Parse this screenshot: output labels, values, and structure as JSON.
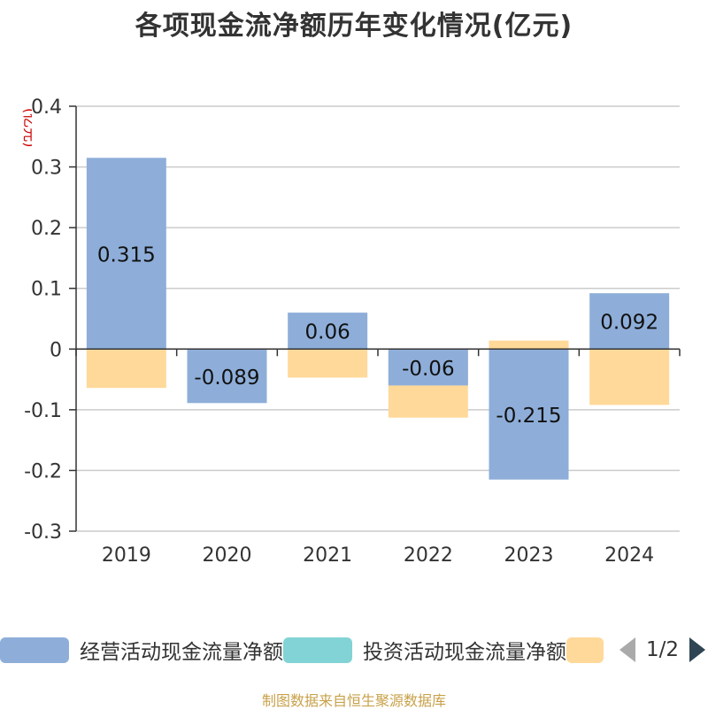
{
  "chart_data": {
    "type": "bar",
    "title": "各项现金流净额历年变化情况(亿元)",
    "unit_label": "(亿元)",
    "categories": [
      "2019",
      "2020",
      "2021",
      "2022",
      "2023",
      "2024"
    ],
    "ylim": [
      -0.3,
      0.4
    ],
    "yticks": [
      0.4,
      0.3,
      0.2,
      0.1,
      0,
      -0.1,
      -0.2,
      -0.3
    ],
    "ytick_labels": [
      "0.4",
      "0.3",
      "0.2",
      "0.1",
      "0",
      "-0.1",
      "-0.2",
      "-0.3"
    ],
    "grid": true,
    "series": [
      {
        "name": "经营活动现金流量净额",
        "color": "#8eaed9",
        "values": [
          0.315,
          -0.089,
          0.06,
          -0.06,
          -0.215,
          0.092
        ],
        "labels": [
          "0.315",
          "-0.089",
          "0.06",
          "-0.06",
          "-0.215",
          "0.092"
        ]
      },
      {
        "name": "投资活动现金流量净额",
        "color": "#82d3d5",
        "values": [
          0,
          0,
          0,
          0,
          0,
          0
        ]
      },
      {
        "name": "",
        "color": "#ffd999",
        "values": [
          -0.064,
          -0.085,
          -0.047,
          -0.113,
          0.014,
          -0.092
        ]
      }
    ]
  },
  "legend": {
    "items": [
      {
        "label": "经营活动现金流量净额",
        "color": "#8eaed9"
      },
      {
        "label": "投资活动现金流量净额",
        "color": "#82d3d5"
      },
      {
        "label": "",
        "color": "#ffd999"
      }
    ],
    "page_indicator": "1/2"
  },
  "footer": {
    "source": "制图数据来自恒生聚源数据库"
  }
}
